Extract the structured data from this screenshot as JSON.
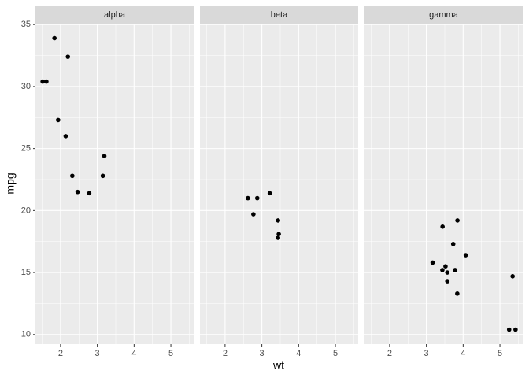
{
  "chart_data": [
    {
      "type": "scatter",
      "title": "alpha",
      "color": "#000000",
      "x": [
        2.32,
        3.19,
        3.15,
        2.2,
        1.615,
        1.835,
        2.465,
        1.935,
        2.14,
        1.513,
        2.78
      ],
      "values": [
        22.8,
        24.4,
        22.8,
        32.4,
        30.4,
        33.9,
        21.5,
        27.3,
        26.0,
        30.4,
        21.4
      ],
      "xlim": [
        1.3175,
        5.6195
      ],
      "ylim": [
        9.225,
        35.075
      ],
      "xticks": [
        2,
        3,
        4,
        5
      ],
      "yticks": [
        10,
        15,
        20,
        25,
        30,
        35
      ],
      "grid": true
    },
    {
      "type": "scatter",
      "title": "beta",
      "color": "#000000",
      "x": [
        2.62,
        2.875,
        3.215,
        3.46,
        3.44,
        3.44,
        2.77
      ],
      "values": [
        21.0,
        21.0,
        21.4,
        18.1,
        19.2,
        17.8,
        19.7
      ],
      "xlim": [
        1.3175,
        5.6195
      ],
      "ylim": [
        9.225,
        35.075
      ],
      "xticks": [
        2,
        3,
        4,
        5
      ],
      "yticks": [
        10,
        15,
        20,
        25,
        30,
        35
      ],
      "grid": true
    },
    {
      "type": "scatter",
      "title": "gamma",
      "color": "#000000",
      "x": [
        3.44,
        3.57,
        4.07,
        3.73,
        3.78,
        5.25,
        5.424,
        5.345,
        3.52,
        3.435,
        3.84,
        3.845,
        3.17,
        3.57
      ],
      "values": [
        18.7,
        14.3,
        16.4,
        17.3,
        15.2,
        10.4,
        10.4,
        14.7,
        15.5,
        15.2,
        13.3,
        19.2,
        15.8,
        15.0
      ],
      "xlim": [
        1.3175,
        5.6195
      ],
      "ylim": [
        9.225,
        35.075
      ],
      "xticks": [
        2,
        3,
        4,
        5
      ],
      "yticks": [
        10,
        15,
        20,
        25,
        30,
        35
      ],
      "grid": true
    }
  ],
  "xlabel": "wt",
  "ylabel": "mpg"
}
